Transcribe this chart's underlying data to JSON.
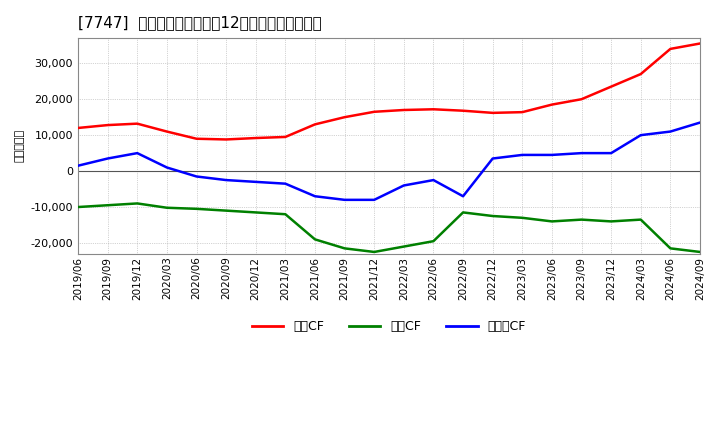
{
  "title": "[7747]  キャッシュフローの12か月移動合計の推移",
  "ylabel": "（百万円）",
  "ylim": [
    -23000,
    37000
  ],
  "yticks": [
    -20000,
    -10000,
    0,
    10000,
    20000,
    30000
  ],
  "background_color": "#ffffff",
  "plot_bg_color": "#ffffff",
  "grid_color": "#aaaaaa",
  "dates": [
    "2019/06",
    "2019/09",
    "2019/12",
    "2020/03",
    "2020/06",
    "2020/09",
    "2020/12",
    "2021/03",
    "2021/06",
    "2021/09",
    "2021/12",
    "2022/03",
    "2022/06",
    "2022/09",
    "2022/12",
    "2023/03",
    "2023/06",
    "2023/09",
    "2023/12",
    "2024/03",
    "2024/06",
    "2024/09"
  ],
  "operating_cf": [
    12000,
    12800,
    13200,
    11000,
    9000,
    8800,
    9200,
    9500,
    13000,
    15000,
    16500,
    17000,
    17200,
    16800,
    16200,
    16400,
    18500,
    20000,
    23500,
    27000,
    34000,
    35500
  ],
  "investing_cf": [
    -10000,
    -9500,
    -9000,
    -10200,
    -10500,
    -11000,
    -11500,
    -12000,
    -19000,
    -21500,
    -22500,
    -21000,
    -19500,
    -11500,
    -12500,
    -13000,
    -14000,
    -13500,
    -14000,
    -13500,
    -21500,
    -22500
  ],
  "free_cf": [
    1500,
    3500,
    5000,
    1000,
    -1500,
    -2500,
    -3000,
    -3500,
    -7000,
    -8000,
    -8000,
    -4000,
    -2500,
    -7000,
    3500,
    4500,
    4500,
    5000,
    5000,
    10000,
    11000,
    13500
  ],
  "line_colors": {
    "operating": "#ff0000",
    "investing": "#008000",
    "free": "#0000ff"
  },
  "legend_labels": [
    "営業CF",
    "投賃CF",
    "フリーCF"
  ],
  "line_width": 1.8
}
